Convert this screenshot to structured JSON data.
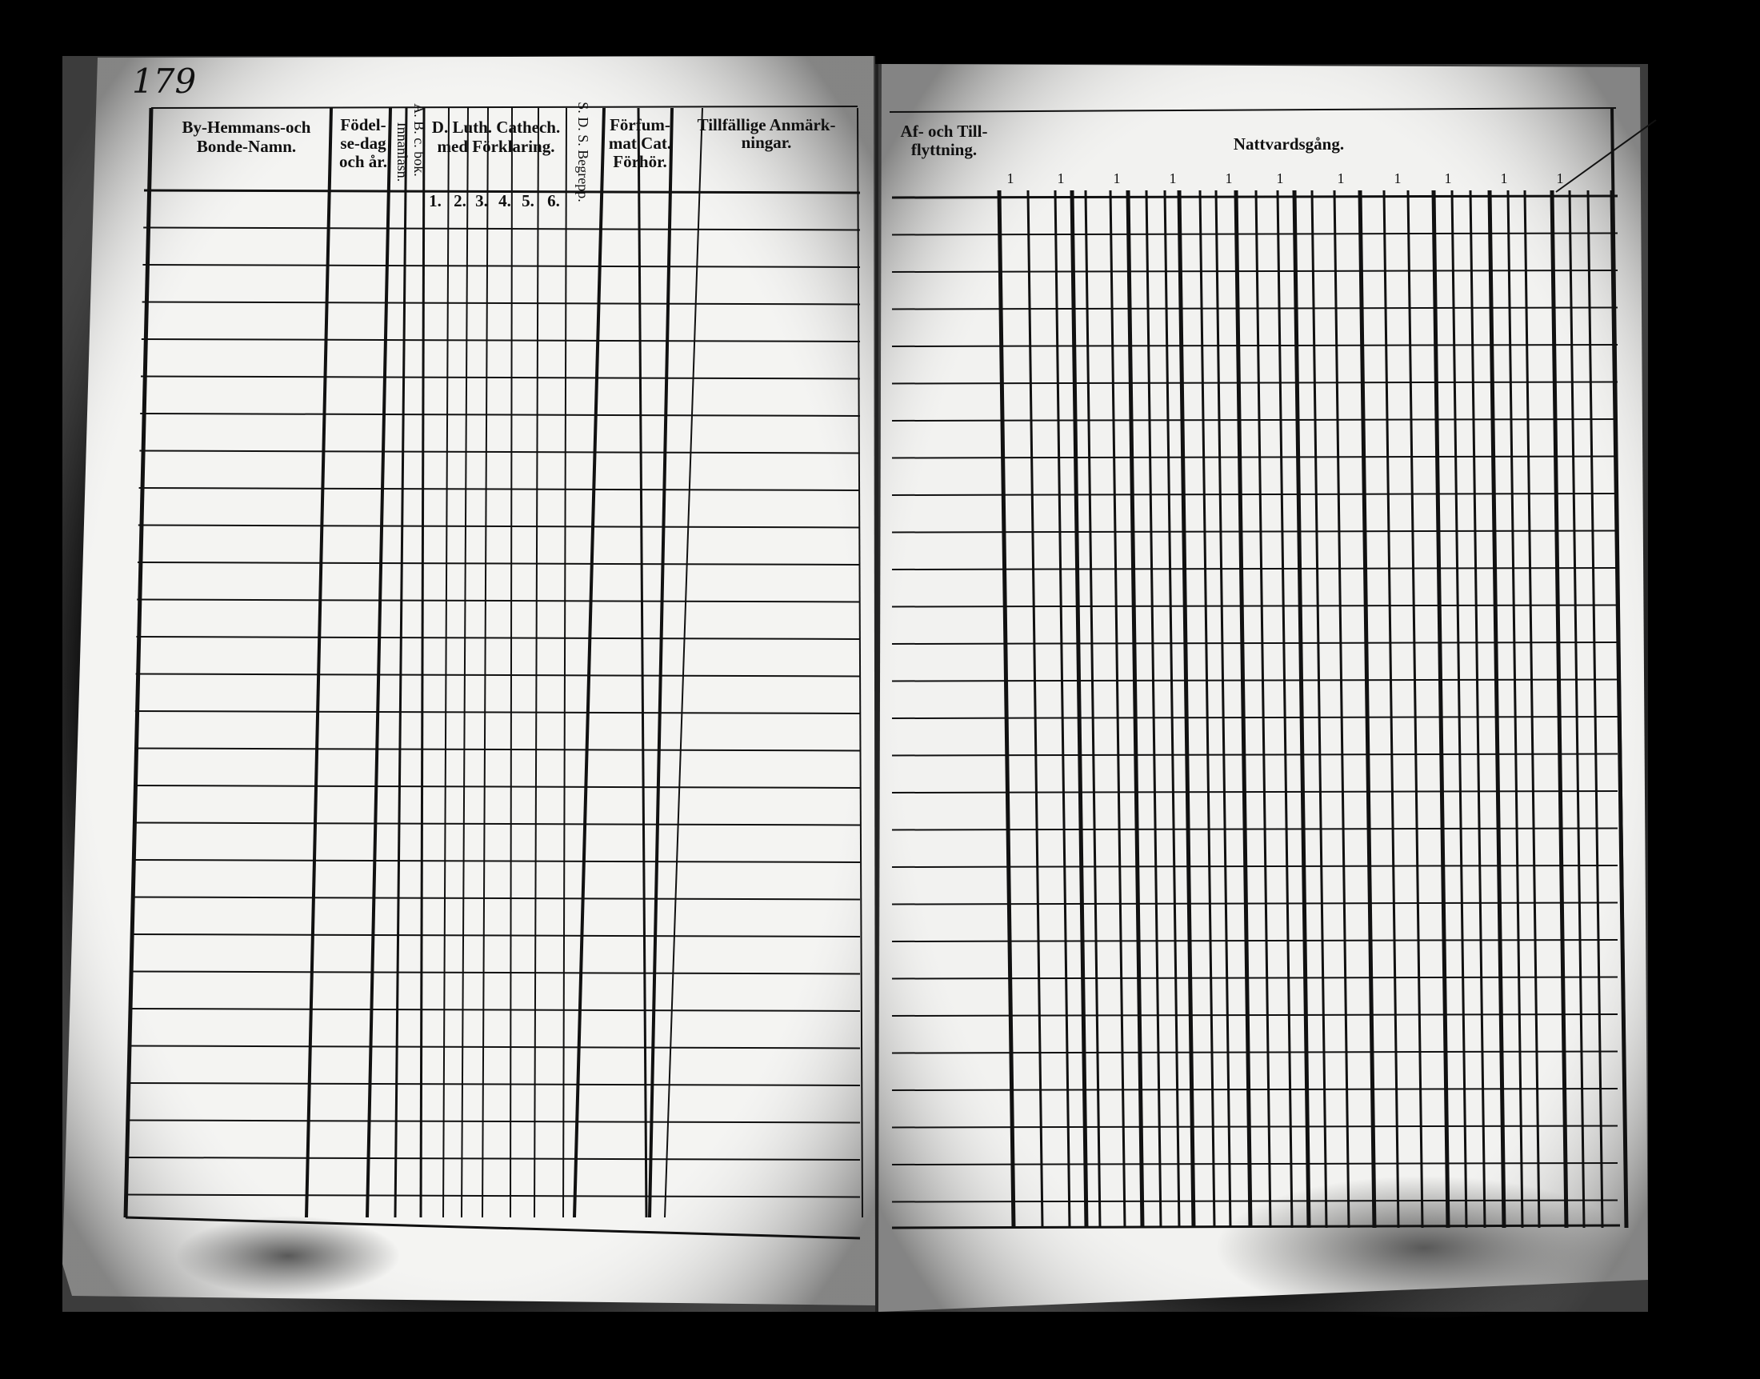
{
  "page_number": "179",
  "left_page": {
    "headers": [
      {
        "lines": [
          "By-Hemmans-och",
          "Bonde-Namn."
        ]
      },
      {
        "lines": [
          "Födel-",
          "se-dag",
          "och år."
        ]
      },
      {
        "lines": [
          "Innanläsn."
        ]
      },
      {
        "lines": [
          "A. B. c. bok."
        ]
      },
      {
        "lines": [
          "D. Luth. Cathech.",
          "med Förklaring."
        ]
      },
      {
        "lines": [
          "S. D. S. Begrepp."
        ]
      },
      {
        "lines": [
          "Förfum-",
          "mat Cat.",
          "Förhör."
        ]
      },
      {
        "lines": [
          "Tillfällige Anmärk-",
          "ningar."
        ]
      }
    ],
    "catechism_numbers": [
      "1.",
      "2.",
      "3.",
      "4.",
      "5.",
      "6."
    ]
  },
  "right_page": {
    "headers": [
      {
        "lines": [
          "Af- och Till-",
          "flyttning."
        ]
      },
      {
        "lines": [
          "Nattvardsgång."
        ]
      }
    ],
    "column_marks": [
      "1",
      "1",
      "1",
      "1",
      "1",
      "1",
      "1",
      "1",
      "1",
      "1",
      "1"
    ]
  }
}
